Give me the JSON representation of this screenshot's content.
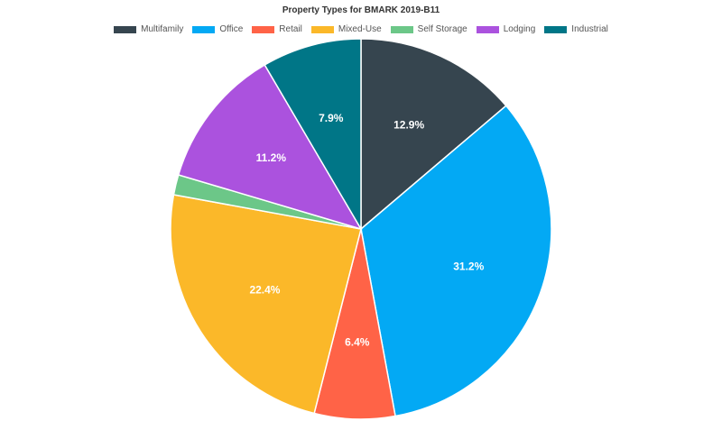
{
  "chart_data": {
    "type": "pie",
    "title": "Property Types for BMARK 2019-B11",
    "legend_position": "top",
    "series": [
      {
        "name": "Multifamily",
        "value": 12.9,
        "label": "12.9%",
        "color": "#36454f"
      },
      {
        "name": "Office",
        "value": 31.2,
        "label": "31.2%",
        "color": "#03a9f4"
      },
      {
        "name": "Retail",
        "value": 6.4,
        "label": "6.4%",
        "color": "#ff6347"
      },
      {
        "name": "Mixed-Use",
        "value": 22.4,
        "label": "22.4%",
        "color": "#fbb829"
      },
      {
        "name": "Self Storage",
        "value": 1.6,
        "label": "",
        "color": "#6cc788"
      },
      {
        "name": "Lodging",
        "value": 11.2,
        "label": "11.2%",
        "color": "#ab52de"
      },
      {
        "name": "Industrial",
        "value": 7.9,
        "label": "7.9%",
        "color": "#007687"
      }
    ]
  }
}
